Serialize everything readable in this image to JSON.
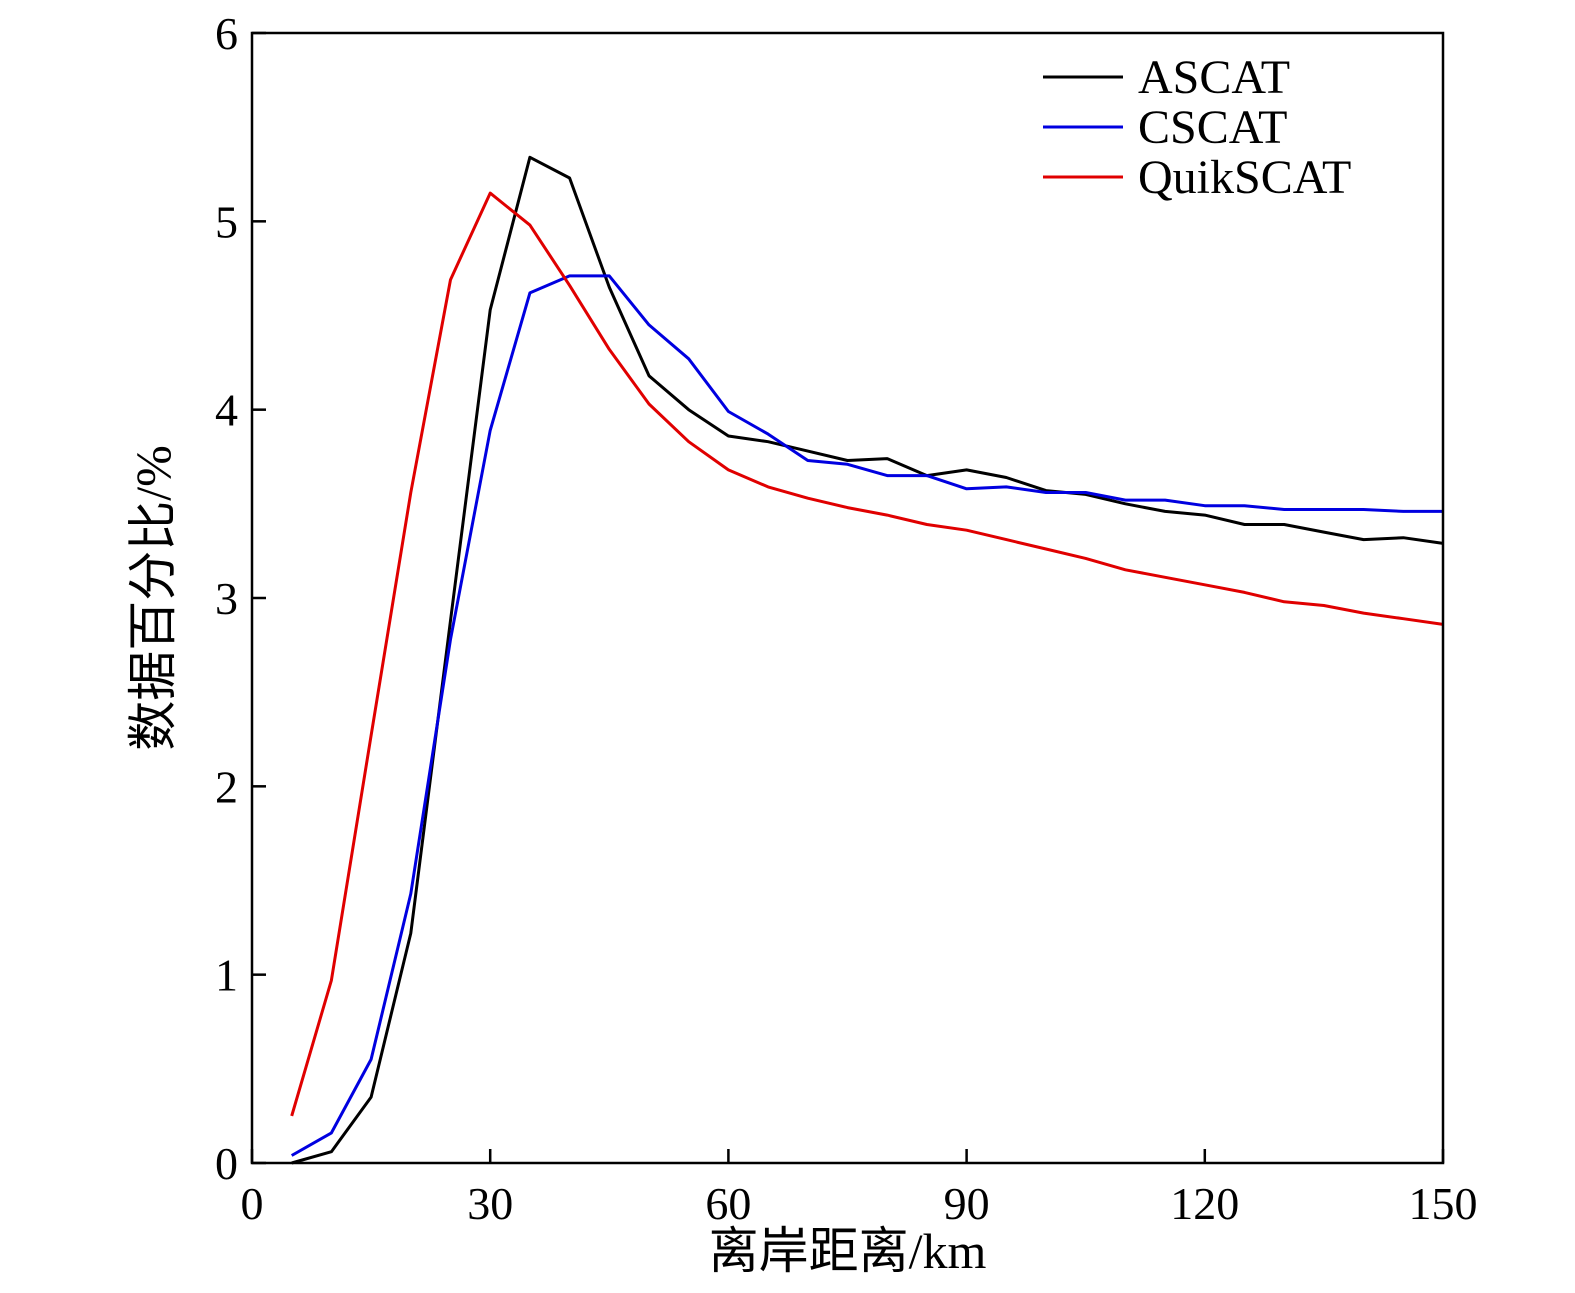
{
  "chart_data": {
    "type": "line",
    "title": "",
    "xlabel": "离岸距离/km",
    "ylabel": "数据百分比/%",
    "xlim": [
      0,
      150
    ],
    "ylim": [
      0,
      6
    ],
    "xticks": [
      0,
      30,
      60,
      90,
      120,
      150
    ],
    "yticks": [
      0,
      1,
      2,
      3,
      4,
      5,
      6
    ],
    "grid": false,
    "legend_position": "top-right",
    "x": [
      5,
      10,
      15,
      20,
      25,
      30,
      35,
      40,
      45,
      50,
      55,
      60,
      65,
      70,
      75,
      80,
      85,
      90,
      95,
      100,
      105,
      110,
      115,
      120,
      125,
      130,
      135,
      140,
      145,
      150
    ],
    "series": [
      {
        "name": "ASCAT",
        "color": "#000000",
        "values": [
          0.0,
          0.06,
          0.35,
          1.22,
          2.88,
          4.53,
          5.34,
          5.23,
          4.65,
          4.18,
          4.0,
          3.86,
          3.83,
          3.78,
          3.73,
          3.74,
          3.65,
          3.68,
          3.64,
          3.57,
          3.55,
          3.5,
          3.46,
          3.44,
          3.39,
          3.39,
          3.35,
          3.31,
          3.32,
          3.29
        ]
      },
      {
        "name": "CSCAT",
        "color": "#0000e0",
        "values": [
          0.04,
          0.16,
          0.55,
          1.43,
          2.78,
          3.89,
          4.62,
          4.71,
          4.71,
          4.45,
          4.27,
          3.99,
          3.87,
          3.73,
          3.71,
          3.65,
          3.65,
          3.58,
          3.59,
          3.56,
          3.56,
          3.52,
          3.52,
          3.49,
          3.49,
          3.47,
          3.47,
          3.47,
          3.46,
          3.46
        ]
      },
      {
        "name": "QuikSCAT",
        "color": "#e00000",
        "values": [
          0.25,
          0.97,
          2.27,
          3.56,
          4.69,
          5.15,
          4.98,
          4.66,
          4.32,
          4.03,
          3.83,
          3.68,
          3.59,
          3.53,
          3.48,
          3.44,
          3.39,
          3.36,
          3.31,
          3.26,
          3.21,
          3.15,
          3.11,
          3.07,
          3.03,
          2.98,
          2.96,
          2.92,
          2.89,
          2.86
        ]
      }
    ]
  }
}
